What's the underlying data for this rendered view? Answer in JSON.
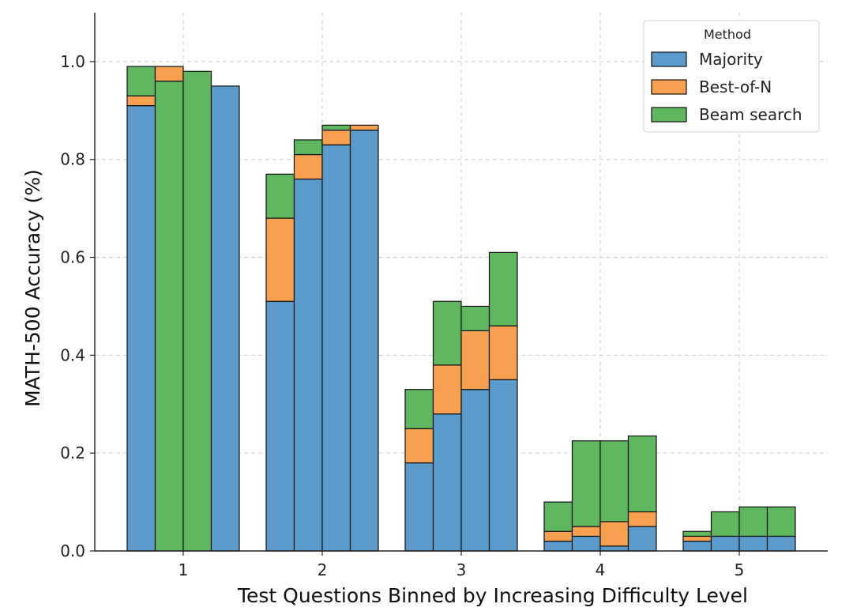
{
  "chart_data": {
    "type": "bar",
    "stacked": true,
    "categories": [
      "1",
      "2",
      "3",
      "4",
      "5"
    ],
    "bars_per_category": 4,
    "xlabel": "Test Questions Binned by Increasing Difficulty Level",
    "ylabel": "MATH-500 Accuracy (%)",
    "ylim": [
      0,
      1.1
    ],
    "yticks": [
      0.0,
      0.2,
      0.4,
      0.6,
      0.8,
      1.0
    ],
    "ytick_labels": [
      "0.0",
      "0.2",
      "0.4",
      "0.6",
      "0.8",
      "1.0"
    ],
    "grid": true,
    "legend": {
      "title": "Method",
      "position": "top-right"
    },
    "series": [
      {
        "name": "Majority",
        "color": "#5b9bcc",
        "values": [
          [
            0.91,
            0.0,
            0.0,
            0.95
          ],
          [
            0.51,
            0.76,
            0.83,
            0.86
          ],
          [
            0.18,
            0.28,
            0.33,
            0.35
          ],
          [
            0.02,
            0.03,
            0.01,
            0.05
          ],
          [
            0.02,
            0.03,
            0.03,
            0.03
          ]
        ]
      },
      {
        "name": "Best-of-N",
        "color": "#f7a04f",
        "values": [
          [
            0.02,
            0.03,
            0.0,
            0.0
          ],
          [
            0.17,
            0.05,
            0.03,
            0.01
          ],
          [
            0.07,
            0.1,
            0.12,
            0.11
          ],
          [
            0.02,
            0.02,
            0.05,
            0.03
          ],
          [
            0.01,
            0.0,
            0.0,
            0.0
          ]
        ]
      },
      {
        "name": "Beam search",
        "color": "#5fb760",
        "values": [
          [
            0.06,
            0.96,
            0.98,
            0.0
          ],
          [
            0.09,
            0.03,
            0.01,
            0.0
          ],
          [
            0.08,
            0.13,
            0.05,
            0.15
          ],
          [
            0.06,
            0.175,
            0.165,
            0.155
          ],
          [
            0.01,
            0.05,
            0.06,
            0.06
          ]
        ]
      }
    ],
    "stack_order": [
      [
        [
          0,
          1,
          2
        ],
        [
          2,
          1,
          0
        ],
        [
          2,
          0
        ],
        [
          2,
          0
        ]
      ],
      [
        [
          0,
          1,
          2
        ],
        [
          0,
          1,
          2
        ],
        [
          0,
          1,
          2
        ],
        [
          2,
          0,
          1
        ]
      ],
      [
        [
          0,
          1,
          2
        ],
        [
          0,
          1,
          2
        ],
        [
          0,
          1,
          2
        ],
        [
          0,
          1,
          2
        ]
      ],
      [
        [
          0,
          1,
          2
        ],
        [
          0,
          1,
          2
        ],
        [
          0,
          1,
          2
        ],
        [
          0,
          1,
          2
        ]
      ],
      [
        [
          0,
          1,
          2
        ],
        [
          0,
          2
        ],
        [
          0,
          2
        ],
        [
          0,
          2
        ]
      ]
    ]
  }
}
